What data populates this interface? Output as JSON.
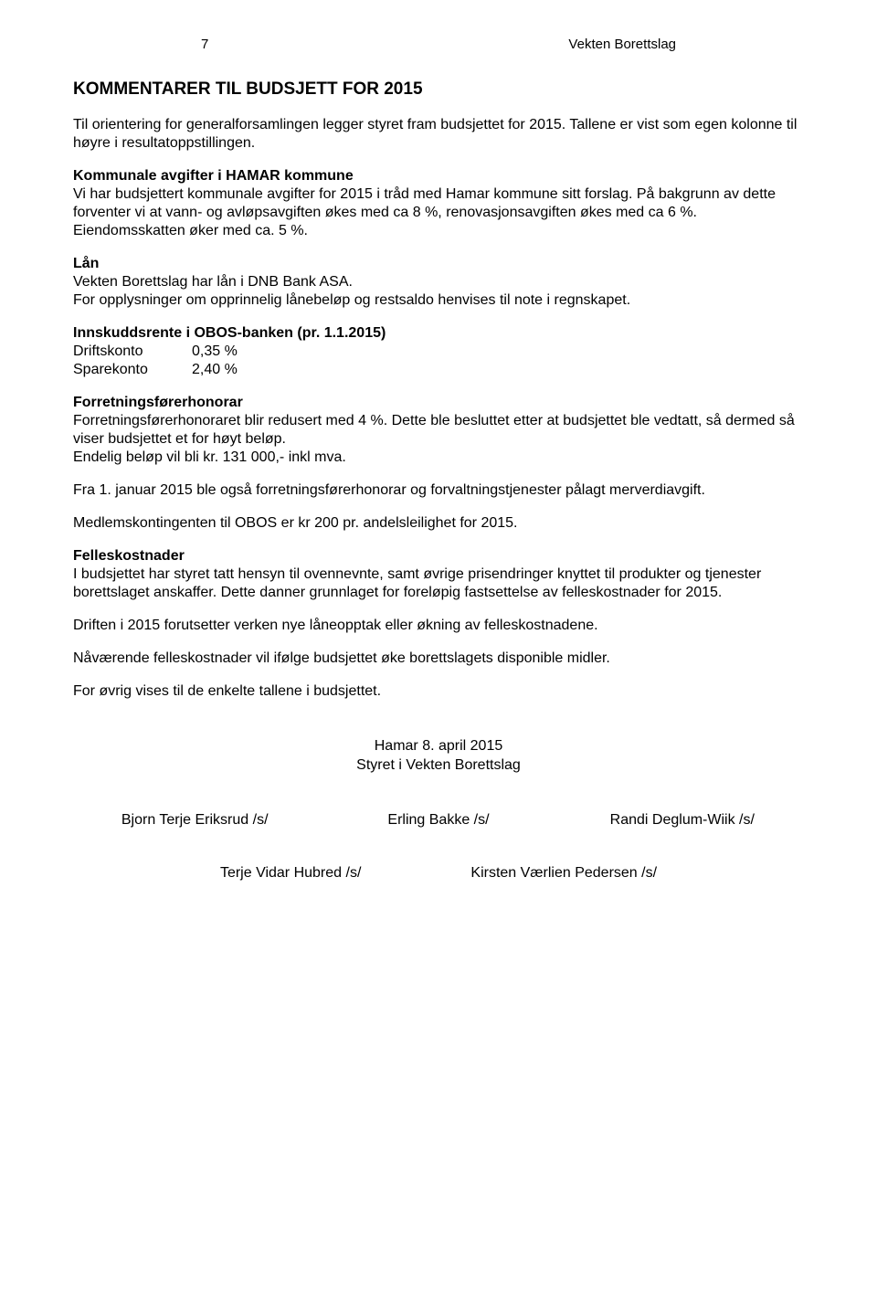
{
  "header": {
    "page_number": "7",
    "organization": "Vekten Borettslag"
  },
  "title": "KOMMENTARER TIL BUDSJETT FOR 2015",
  "intro": "Til orientering for generalforsamlingen legger styret fram budsjettet for 2015. Tallene er vist som egen kolonne til høyre i resultatoppstillingen.",
  "sections": {
    "kommunale": {
      "title": "Kommunale avgifter i HAMAR kommune",
      "body": "Vi har budsjettert kommunale avgifter for 2015 i tråd med Hamar kommune sitt forslag. På bakgrunn av dette forventer vi at vann- og avløpsavgiften økes med ca 8 %, renovasjonsavgiften økes med ca 6 %. Eiendomsskatten øker med ca. 5 %."
    },
    "laan": {
      "title": "Lån",
      "body": "Vekten Borettslag har lån i DNB Bank ASA.\nFor opplysninger om opprinnelig lånebeløp og restsaldo henvises til note i regnskapet."
    },
    "innskudd": {
      "title": "Innskuddsrente i OBOS-banken (pr. 1.1.2015)",
      "rows": [
        {
          "label": "Driftskonto",
          "value": "0,35 %"
        },
        {
          "label": "Sparekonto",
          "value": "2,40 %"
        }
      ]
    },
    "forretning": {
      "title": "Forretningsførerhonorar",
      "body1": "Forretningsførerhonoraret blir redusert med 4 %. Dette ble besluttet etter at budsjettet ble vedtatt, så dermed så viser budsjettet et for høyt beløp.\nEndelig beløp vil bli kr. 131 000,- inkl mva.",
      "body2": "Fra 1. januar 2015 ble også forretningsførerhonorar og forvaltningstjenester pålagt merverdiavgift.",
      "body3": "Medlemskontingenten til OBOS er kr 200 pr. andelsleilighet for 2015."
    },
    "felles": {
      "title": "Felleskostnader",
      "body": "I budsjettet har styret tatt hensyn til ovennevnte, samt øvrige prisendringer knyttet til produkter og tjenester borettslaget anskaffer. Dette danner grunnlaget for foreløpig fastsettelse av felleskostnader for 2015."
    },
    "drift": "Driften i 2015 forutsetter verken nye låneopptak eller økning av felleskostnadene.",
    "naavaerende": "Nåværende felleskostnader vil ifølge budsjettet øke borettslagets disponible midler.",
    "forovrig": "For øvrig vises til de enkelte tallene i budsjettet."
  },
  "signature": {
    "date_line": "Hamar 8. april 2015",
    "board_line": "Styret i Vekten Borettslag",
    "row1": [
      "Bjorn Terje Eriksrud /s/",
      "Erling Bakke /s/",
      "Randi Deglum-Wiik /s/"
    ],
    "row2": [
      "Terje Vidar Hubred /s/",
      "Kirsten Værlien Pedersen /s/"
    ]
  }
}
